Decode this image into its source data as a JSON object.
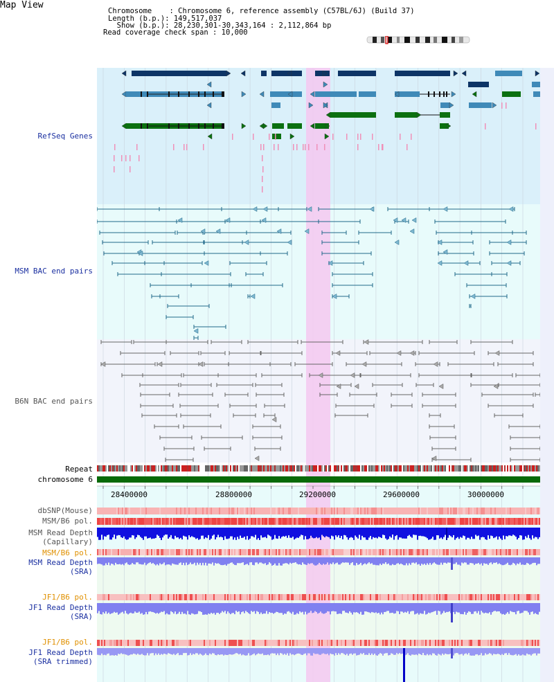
{
  "title": "Map View",
  "info": {
    "chromosome_key": "Chromosome    ",
    "chromosome_val": ": Chromosome 6, reference assembly (C57BL/6J) (Build 37)",
    "length_key": "Length (b.p.)",
    "length_val": ": 149,517,037",
    "show_key": "  Show (b.p.)",
    "show_val": ": 28,230,301-30,343,164 : 2,112,864 bp",
    "coverage_text": "Read coverage check span : 10,000"
  },
  "tracks": {
    "refseq": "RefSeq Genes",
    "msm_bac": "MSM BAC end pairs",
    "b6n_bac": "B6N BAC end pairs",
    "repeat": "Repeat",
    "chromosome": "chromosome 6",
    "dbsnp": "dbSNP(Mouse)",
    "msm_b6_pol_1": "MSM/B6 pol.",
    "msm_depth_cap_1": "MSM Read Depth",
    "msm_depth_cap_2": "(Capillary)",
    "msm_b6_pol_2": "MSM/B6 pol.",
    "msm_depth_sra_1": "MSM Read Depth",
    "msm_depth_sra_2": "(SRA)",
    "jf1_pol_1": "JF1/B6 pol.",
    "jf1_depth_1": "JF1 Read Depth",
    "jf1_depth_2": "(SRA)",
    "jf1_pol_2": "JF1/B6 pol.",
    "jf1_trim_1": "JF1 Read Depth",
    "jf1_trim_2": "(SRA trimmed)"
  },
  "axis": {
    "ticks": [
      "28400000",
      "28800000",
      "29200000",
      "29600000",
      "30000000"
    ]
  },
  "colors": {
    "refseq_bg": "#daf0fa",
    "msm_bg": "#e8fbfb",
    "b6n_bg": "#f2f4fb",
    "highlight": "#f5c8f0",
    "gene_dark": "#0d3466",
    "gene_mid": "#3f8ab8",
    "gene_green": "#0b7010",
    "bac_teal": "#20688a",
    "bac_grey": "#666666",
    "depth_blue": "#1010e0",
    "depth_light": "#8080f0",
    "pol_red": "#e83030",
    "pol_pink": "#f8b0b0",
    "label_blue": "#1a2fa0",
    "label_orange": "#e09000"
  }
}
